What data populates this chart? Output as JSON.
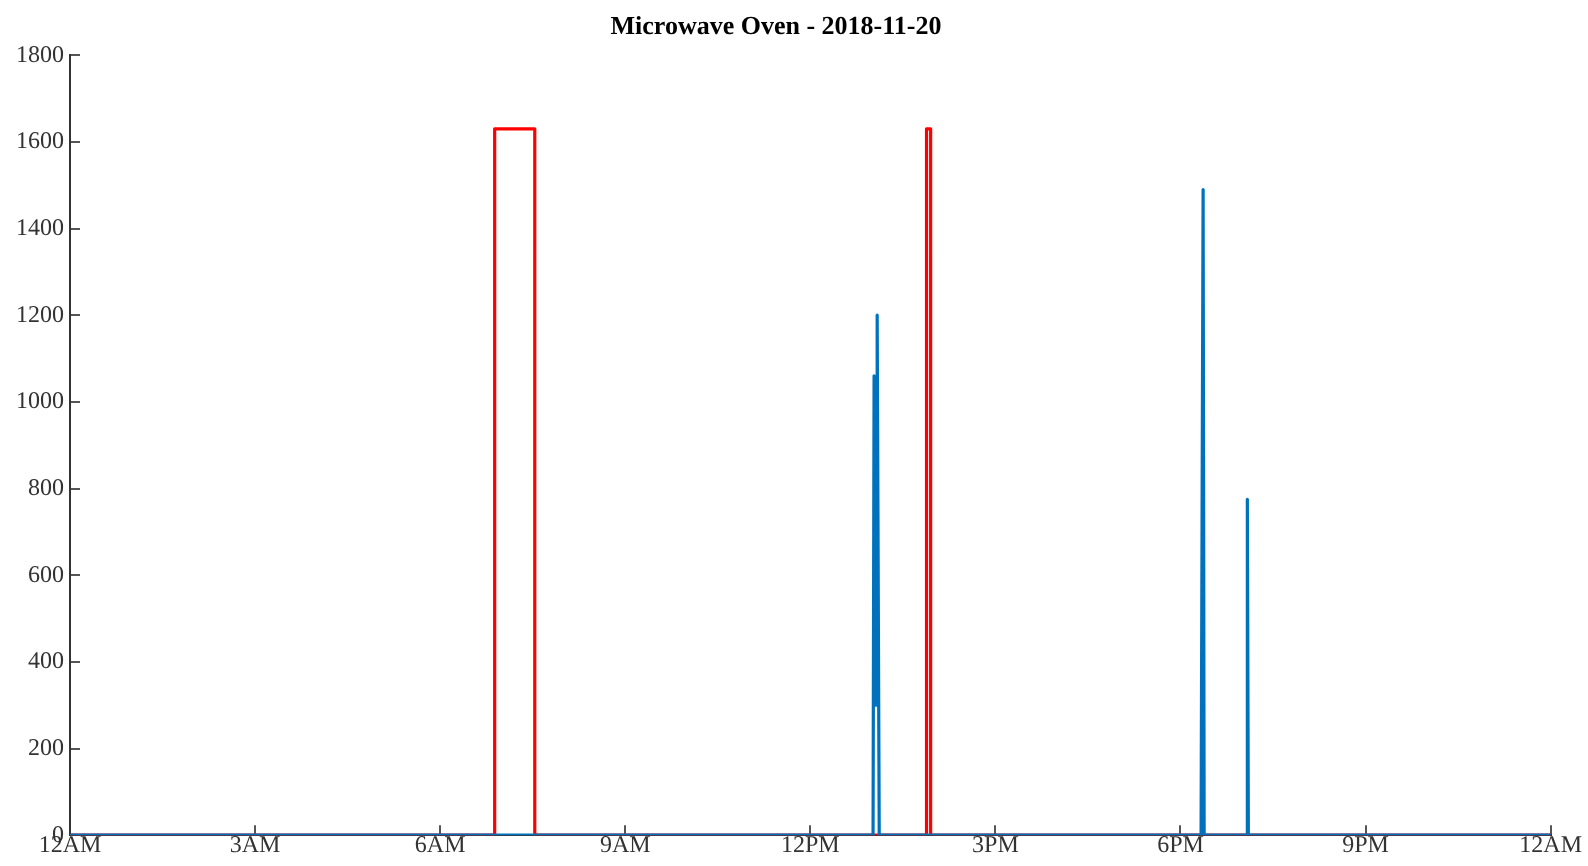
{
  "chart_data": {
    "type": "line",
    "title": "Microwave Oven - 2018-11-20",
    "xlim": [
      "2018-11-20T00:00",
      "2018-11-21T00:00"
    ],
    "xticks": [
      {
        "value": "2018-11-20T00:00",
        "label": "12AM"
      },
      {
        "value": "2018-11-20T03:00",
        "label": "3AM"
      },
      {
        "value": "2018-11-20T06:00",
        "label": "6AM"
      },
      {
        "value": "2018-11-20T09:00",
        "label": "9AM"
      },
      {
        "value": "2018-11-20T12:00",
        "label": "12PM"
      },
      {
        "value": "2018-11-20T15:00",
        "label": "3PM"
      },
      {
        "value": "2018-11-20T18:00",
        "label": "6PM"
      },
      {
        "value": "2018-11-20T21:00",
        "label": "9PM"
      },
      {
        "value": "2018-11-21T00:00",
        "label": "12AM"
      }
    ],
    "ylim": [
      0,
      1800
    ],
    "yticks": [
      0,
      200,
      400,
      600,
      800,
      1000,
      1200,
      1400,
      1600,
      1800
    ],
    "grid": false,
    "legend": false,
    "marker": "none",
    "series": [
      {
        "type": "line",
        "color": "#0072bd",
        "x": [
          "2018-11-20T00:00",
          "2018-11-20T13:01",
          "2018-11-20T13:02",
          "2018-11-20T13:04",
          "2018-11-20T13:05",
          "2018-11-20T13:07",
          "2018-11-20T18:20",
          "2018-11-20T18:22",
          "2018-11-20T18:23",
          "2018-11-20T19:04",
          "2018-11-20T19:05",
          "2018-11-20T19:06",
          "2018-11-21T00:00"
        ],
        "values": [
          0,
          0,
          1060,
          300,
          1200,
          0,
          0,
          1490,
          0,
          0,
          775,
          0,
          0
        ]
      },
      {
        "type": "step",
        "color": "#ff0000",
        "x": [
          "2018-11-20T00:00",
          "2018-11-20T06:53",
          "2018-11-20T07:32",
          "2018-11-20T13:53",
          "2018-11-20T13:57",
          "2018-11-21T00:00"
        ],
        "values": [
          0,
          1630,
          0,
          1630,
          0,
          0
        ]
      }
    ]
  }
}
